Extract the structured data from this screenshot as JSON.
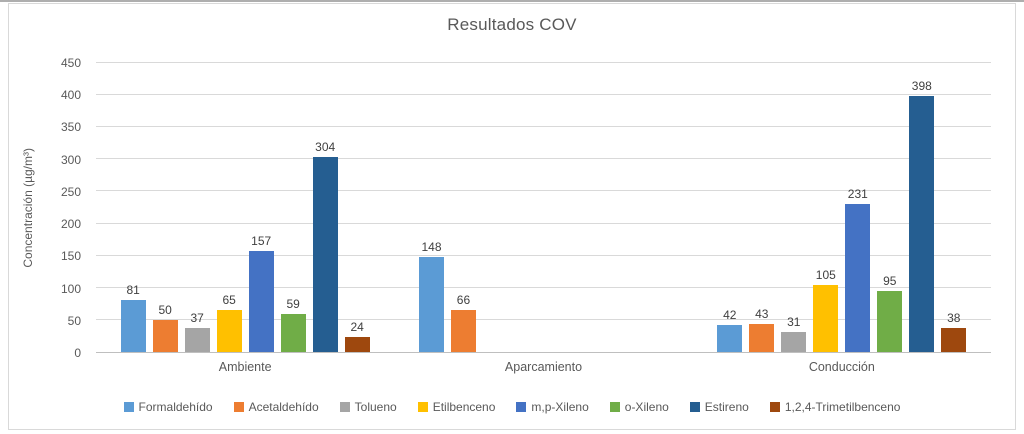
{
  "chart_data": {
    "type": "bar",
    "title": "Resultados COV",
    "xlabel": "",
    "ylabel": "Concentración (µg/m³)",
    "categories": [
      "Ambiente",
      "Aparcamiento",
      "Conducción"
    ],
    "series": [
      {
        "name": "Formaldehído",
        "color": "#5B9BD5",
        "values": [
          81,
          148,
          42
        ]
      },
      {
        "name": "Acetaldehído",
        "color": "#ED7D31",
        "values": [
          50,
          66,
          43
        ]
      },
      {
        "name": "Tolueno",
        "color": "#A5A5A5",
        "values": [
          37,
          null,
          31
        ]
      },
      {
        "name": "Etilbenceno",
        "color": "#FFC000",
        "values": [
          65,
          null,
          105
        ]
      },
      {
        "name": "m,p-Xileno",
        "color": "#4472C4",
        "values": [
          157,
          null,
          231
        ]
      },
      {
        "name": "o-Xileno",
        "color": "#70AD47",
        "values": [
          59,
          null,
          95
        ]
      },
      {
        "name": "Estireno",
        "color": "#255E91",
        "values": [
          304,
          null,
          398
        ]
      },
      {
        "name": "1,2,4-Trimetilbenceno",
        "color": "#9E480E",
        "values": [
          24,
          null,
          38
        ]
      }
    ],
    "ylim": [
      0,
      450
    ],
    "yticks": [
      0,
      50,
      100,
      150,
      200,
      250,
      300,
      350,
      400,
      450
    ],
    "grid": true,
    "gridline_color": "#D9D9D9",
    "axis_line_color": "#BFBFBF",
    "text_color": "#595959",
    "data_label_color": "#404040",
    "legend_position": "bottom",
    "data_labels": true
  }
}
